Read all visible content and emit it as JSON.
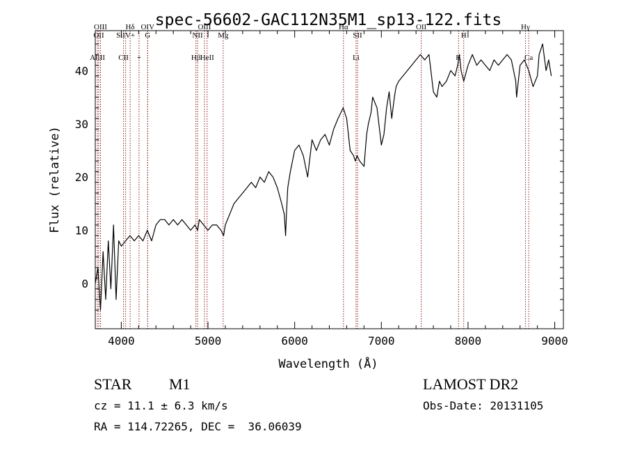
{
  "chart_data": {
    "type": "line",
    "title": "spec-56602-GAC112N35M1_sp13-122.fits",
    "xlabel": "Wavelength (Å)",
    "ylabel": "Flux (relative)",
    "xlim": [
      3700,
      9100
    ],
    "ylim": [
      -8.5,
      47.5
    ],
    "xticks": [
      4000,
      5000,
      6000,
      7000,
      8000,
      9000
    ],
    "yticks": [
      0,
      10,
      20,
      30,
      40
    ],
    "grid": false,
    "series": [
      {
        "x": [
          3700,
          3730,
          3760,
          3790,
          3820,
          3850,
          3880,
          3910,
          3940,
          3970,
          4000,
          4050,
          4100,
          4150,
          4200,
          4250,
          4300,
          4350,
          4400,
          4450,
          4500,
          4550,
          4600,
          4650,
          4700,
          4750,
          4800,
          4850,
          4880,
          4900,
          4950,
          5000,
          5050,
          5100,
          5150,
          5180,
          5200,
          5250,
          5300,
          5350,
          5400,
          5450,
          5500,
          5550,
          5600,
          5650,
          5700,
          5750,
          5800,
          5850,
          5880,
          5895,
          5905,
          5920,
          5950,
          6000,
          6050,
          6100,
          6150,
          6200,
          6250,
          6300,
          6350,
          6400,
          6450,
          6500,
          6530,
          6560,
          6580,
          6600,
          6640,
          6680,
          6700,
          6720,
          6750,
          6800,
          6830,
          6850,
          6880,
          6900,
          6950,
          7000,
          7030,
          7060,
          7090,
          7120,
          7150,
          7170,
          7200,
          7250,
          7300,
          7350,
          7400,
          7450,
          7500,
          7550,
          7600,
          7640,
          7670,
          7700,
          7750,
          7800,
          7850,
          7880,
          7900,
          7920,
          7950,
          8000,
          8050,
          8100,
          8150,
          8200,
          8250,
          8300,
          8350,
          8400,
          8450,
          8500,
          8550,
          8560,
          8600,
          8650,
          8700,
          8750,
          8800,
          8820,
          8860,
          8900,
          8930,
          8960
        ],
        "y": [
          0,
          3,
          -5,
          6,
          -3,
          8,
          -1,
          11,
          -3,
          8,
          7,
          8,
          9,
          8,
          9,
          8,
          10,
          8,
          11,
          12,
          12,
          11,
          12,
          11,
          12,
          11,
          10,
          11,
          10,
          12,
          11,
          10,
          11,
          11,
          10,
          9,
          11,
          13,
          15,
          16,
          17,
          18,
          19,
          18,
          20,
          19,
          21,
          20,
          18,
          15,
          13,
          9,
          13,
          18,
          21,
          25,
          26,
          24,
          20,
          27,
          25,
          27,
          28,
          26,
          29,
          31,
          32,
          33,
          32,
          31,
          25,
          24,
          23,
          24,
          23,
          22,
          28,
          30,
          32,
          35,
          33,
          26,
          28,
          33,
          36,
          31,
          35,
          37,
          38,
          39,
          40,
          41,
          42,
          43,
          42,
          43,
          36,
          35,
          38,
          37,
          38,
          40,
          39,
          41,
          43,
          40,
          38,
          41,
          43,
          41,
          42,
          41,
          40,
          42,
          41,
          42,
          43,
          42,
          38,
          35,
          41,
          42,
          40,
          37,
          39,
          43,
          45,
          40,
          42,
          39
        ]
      }
    ],
    "lines": [
      {
        "x": 3725,
        "label": "AlIII"
      },
      {
        "x": 3740,
        "label": "OII"
      },
      {
        "x": 3760,
        "label": "OIII"
      },
      {
        "x": 4026,
        "label": "CII"
      },
      {
        "x": 4050,
        "label": "SiIV+"
      },
      {
        "x": 4102,
        "label": "Hδ"
      },
      {
        "x": 4205,
        "label": "+"
      },
      {
        "x": 4304,
        "label": "G"
      },
      {
        "x": 4304,
        "label": "OIV"
      },
      {
        "x": 4861,
        "label": "Hβ"
      },
      {
        "x": 4880,
        "label": "NII"
      },
      {
        "x": 4959,
        "label": "OIII"
      },
      {
        "x": 4990,
        "label": "HeII"
      },
      {
        "x": 5175,
        "label": "Mg"
      },
      {
        "x": 6563,
        "label": "Hα"
      },
      {
        "x": 6708,
        "label": "Li"
      },
      {
        "x": 6725,
        "label": "SII"
      },
      {
        "x": 7460,
        "label": "OII"
      },
      {
        "x": 7890,
        "label": "K"
      },
      {
        "x": 7950,
        "label": "H"
      },
      {
        "x": 8662,
        "label": "Hγ"
      },
      {
        "x": 8700,
        "label": "Ca"
      }
    ]
  },
  "info": {
    "object_class": "STAR",
    "subclass": "M1",
    "survey": "LAMOST DR2",
    "cz": "cz = 11.1 ± 6.3 km/s",
    "obs_date": "Obs-Date: 20131105",
    "coords": "RA = 114.72265, DEC =  36.06039"
  },
  "colors": {
    "spectrum": "#000000",
    "lines": "#8b1a1a",
    "axes": "#000000"
  }
}
